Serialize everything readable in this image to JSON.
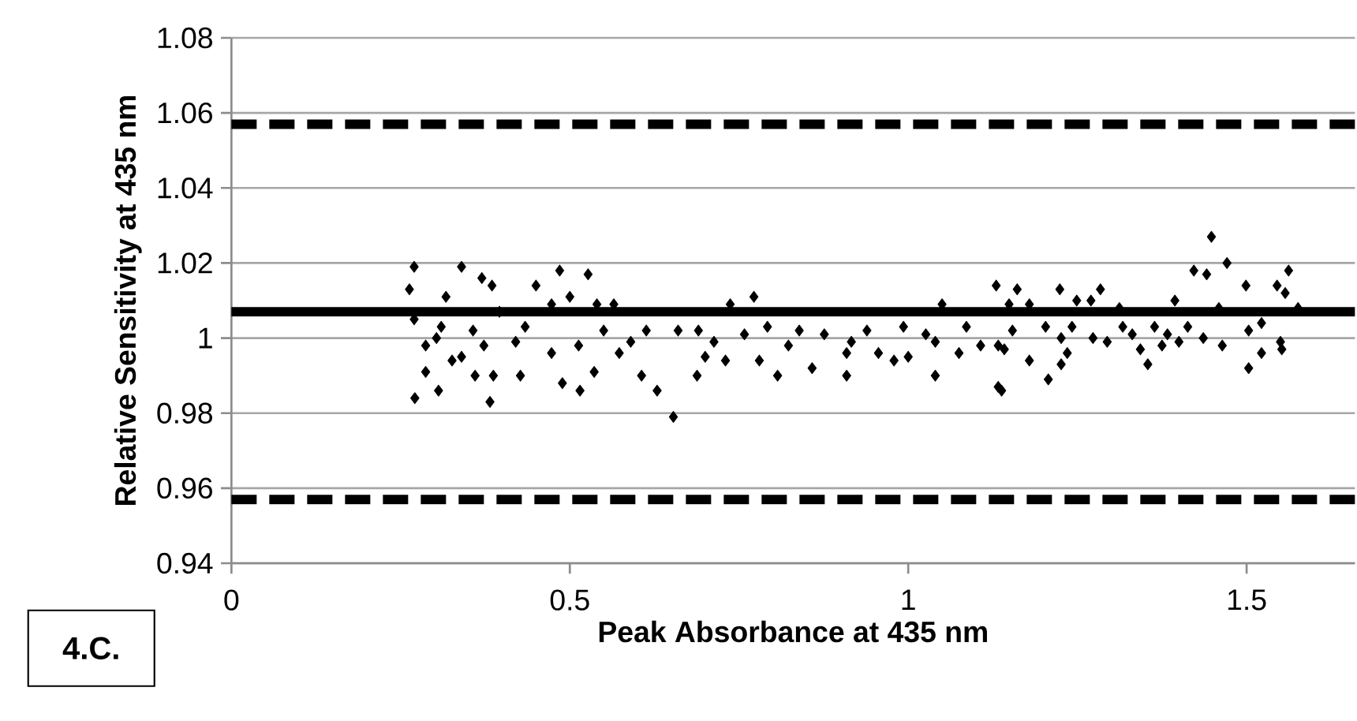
{
  "chart_data": {
    "type": "scatter",
    "xlabel": "Peak Absorbance at 435 nm",
    "ylabel": "Relative Sensitivity at 435 nm",
    "annotations": [
      "4.C."
    ],
    "xlim": [
      0,
      1.66
    ],
    "ylim": [
      0.94,
      1.08
    ],
    "xticks": [
      0,
      0.5,
      1,
      1.5
    ],
    "yticks": [
      0.94,
      0.96,
      0.98,
      1,
      1.02,
      1.04,
      1.06,
      1.08
    ],
    "grid": "y",
    "marker": "diamond",
    "series": [
      {
        "color": "#000000",
        "x": [
          0.27,
          0.34,
          0.485,
          0.527,
          0.37,
          0.263,
          0.385,
          0.45,
          0.5,
          0.54,
          0.565,
          0.317,
          0.287,
          0.287,
          0.306,
          0.271,
          0.36,
          0.387,
          0.427,
          0.382,
          0.489,
          0.515,
          0.536,
          0.606,
          0.629,
          0.653,
          0.688,
          0.34,
          0.42,
          0.473,
          0.573,
          0.613,
          0.66,
          0.434,
          0.357,
          0.31,
          0.27,
          0.396,
          0.473,
          0.373,
          0.303,
          0.326,
          0.55,
          0.59,
          0.513,
          0.772,
          0.737,
          1.13,
          1.05,
          0.69,
          0.713,
          0.758,
          0.792,
          0.839,
          0.876,
          0.939,
          0.993,
          1.026,
          1.086,
          0.7,
          0.73,
          0.78,
          0.807,
          0.858,
          0.909,
          0.909,
          0.956,
          0.979,
          1.0,
          1.04,
          1.075,
          1.133,
          1.107,
          0.823,
          0.916,
          1.04,
          1.142,
          1.448,
          1.471,
          1.422,
          1.441,
          1.562,
          1.161,
          1.224,
          1.284,
          1.499,
          1.545,
          1.557,
          1.249,
          1.27,
          1.394,
          1.149,
          1.179,
          1.312,
          1.459,
          1.576,
          1.203,
          1.154,
          1.242,
          1.317,
          1.364,
          1.413,
          1.522,
          1.226,
          1.273,
          1.331,
          1.383,
          1.436,
          1.503,
          1.133,
          1.294,
          1.343,
          1.375,
          1.4,
          1.464,
          1.55,
          1.235,
          1.522,
          1.179,
          1.354,
          1.503,
          1.226,
          1.138,
          1.207,
          1.552
        ],
        "values": [
          1.019,
          1.019,
          1.018,
          1.017,
          1.016,
          1.013,
          1.014,
          1.014,
          1.011,
          1.009,
          1.009,
          1.011,
          0.998,
          0.991,
          0.986,
          0.984,
          0.99,
          0.99,
          0.99,
          0.983,
          0.988,
          0.986,
          0.991,
          0.99,
          0.986,
          0.979,
          0.99,
          0.995,
          0.999,
          0.996,
          0.996,
          1.002,
          1.002,
          1.003,
          1.002,
          1.003,
          1.005,
          1.007,
          1.009,
          0.998,
          1.0,
          0.994,
          1.002,
          0.999,
          0.998,
          1.011,
          1.009,
          1.014,
          1.009,
          1.002,
          0.999,
          1.001,
          1.003,
          1.002,
          1.001,
          1.002,
          1.003,
          1.001,
          1.003,
          0.995,
          0.994,
          0.994,
          0.99,
          0.992,
          0.99,
          0.996,
          0.996,
          0.994,
          0.995,
          0.99,
          0.996,
          0.987,
          0.998,
          0.998,
          0.999,
          0.999,
          0.997,
          1.027,
          1.02,
          1.018,
          1.017,
          1.018,
          1.013,
          1.013,
          1.013,
          1.014,
          1.014,
          1.012,
          1.01,
          1.01,
          1.01,
          1.009,
          1.009,
          1.008,
          1.008,
          1.008,
          1.003,
          1.002,
          1.003,
          1.003,
          1.003,
          1.003,
          1.004,
          1.0,
          1.0,
          1.001,
          1.001,
          1.0,
          1.002,
          0.998,
          0.999,
          0.997,
          0.998,
          0.999,
          0.998,
          0.999,
          0.996,
          0.996,
          0.994,
          0.993,
          0.992,
          0.993,
          0.986,
          0.989,
          0.997
        ]
      }
    ],
    "ref_lines": [
      {
        "axis": "y",
        "value": 1.057,
        "color": "#000000",
        "line_style": "dashed"
      },
      {
        "axis": "y",
        "value": 1.007,
        "color": "#000000",
        "line_style": "solid"
      },
      {
        "axis": "y",
        "value": 0.957,
        "color": "#000000",
        "line_style": "dashed"
      }
    ]
  }
}
